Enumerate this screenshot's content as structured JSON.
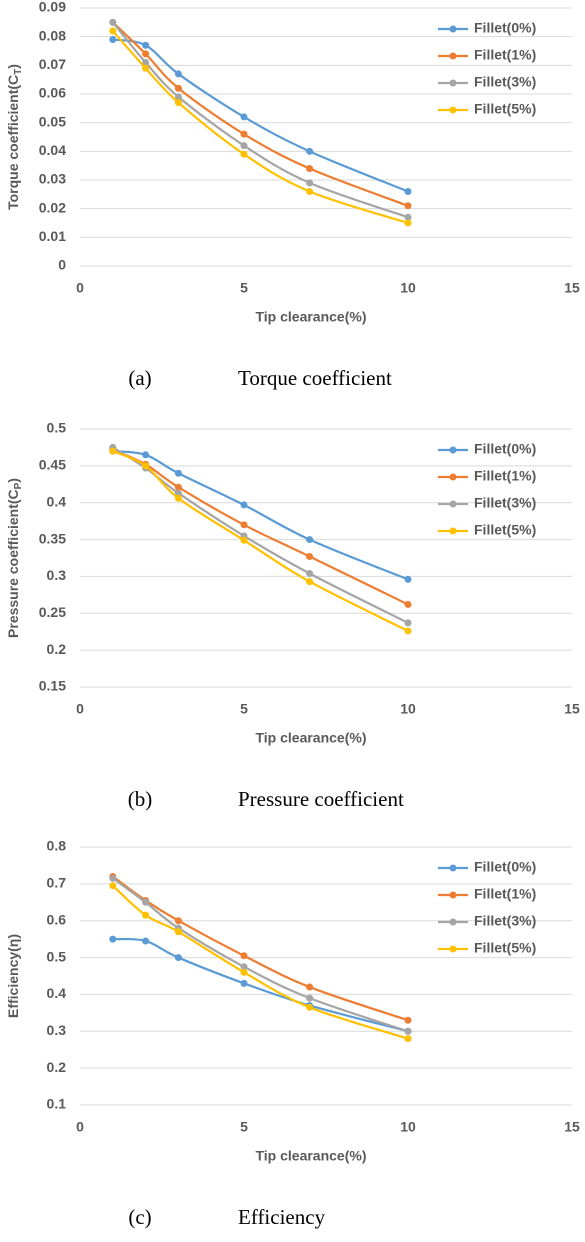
{
  "chart_data": [
    {
      "type": "line",
      "y_label": "Torque coefficient(C",
      "y_label_sub": "T",
      "y_label_end": ")",
      "x_label": "Tip clearance(%)",
      "caption_label": "(a)",
      "caption": "Torque coefficient",
      "x": [
        1,
        2,
        3,
        5,
        7,
        10
      ],
      "xlim": [
        0,
        15
      ],
      "xticks": [
        0,
        5,
        10,
        15
      ],
      "ylim": [
        0,
        0.09
      ],
      "yticks": [
        0,
        0.01,
        0.02,
        0.03,
        0.04,
        0.05,
        0.06,
        0.07,
        0.08,
        0.09
      ],
      "grid": true,
      "series": [
        {
          "name": "Fillet(0%)",
          "color": "#5b9bd5",
          "values": [
            0.079,
            0.077,
            0.067,
            0.052,
            0.04,
            0.026
          ]
        },
        {
          "name": "Fillet(1%)",
          "color": "#ed7d31",
          "values": [
            0.085,
            0.074,
            0.062,
            0.046,
            0.034,
            0.021
          ]
        },
        {
          "name": "Fillet(3%)",
          "color": "#a5a5a5",
          "values": [
            0.085,
            0.071,
            0.059,
            0.042,
            0.029,
            0.017
          ]
        },
        {
          "name": "Fillet(5%)",
          "color": "#ffc000",
          "values": [
            0.082,
            0.069,
            0.057,
            0.039,
            0.026,
            0.015
          ]
        }
      ]
    },
    {
      "type": "line",
      "y_label": "Pressure coefficient(C",
      "y_label_sub": "P",
      "y_label_end": ")",
      "x_label": "Tip clearance(%)",
      "caption_label": "(b)",
      "caption": "Pressure coefficient",
      "x": [
        1,
        2,
        3,
        5,
        7,
        10
      ],
      "xlim": [
        0,
        15
      ],
      "xticks": [
        0,
        5,
        10,
        15
      ],
      "ylim": [
        0.15,
        0.5
      ],
      "yticks": [
        0.15,
        0.2,
        0.25,
        0.3,
        0.35,
        0.4,
        0.45,
        0.5
      ],
      "grid": true,
      "series": [
        {
          "name": "Fillet(0%)",
          "color": "#5b9bd5",
          "values": [
            0.47,
            0.465,
            0.44,
            0.397,
            0.35,
            0.296
          ]
        },
        {
          "name": "Fillet(1%)",
          "color": "#ed7d31",
          "values": [
            0.472,
            0.452,
            0.421,
            0.37,
            0.327,
            0.262
          ]
        },
        {
          "name": "Fillet(3%)",
          "color": "#a5a5a5",
          "values": [
            0.475,
            0.447,
            0.413,
            0.355,
            0.304,
            0.237
          ]
        },
        {
          "name": "Fillet(5%)",
          "color": "#ffc000",
          "values": [
            0.47,
            0.45,
            0.406,
            0.349,
            0.293,
            0.226
          ]
        }
      ]
    },
    {
      "type": "line",
      "y_label": "Efficiency(η)",
      "x_label": "Tip clearance(%)",
      "caption_label": "(c)",
      "caption": "Efficiency",
      "x": [
        1,
        2,
        3,
        5,
        7,
        10
      ],
      "xlim": [
        0,
        15
      ],
      "xticks": [
        0,
        5,
        10,
        15
      ],
      "ylim": [
        0.1,
        0.8
      ],
      "yticks": [
        0.1,
        0.2,
        0.3,
        0.4,
        0.5,
        0.6,
        0.7,
        0.8
      ],
      "grid": true,
      "series": [
        {
          "name": "Fillet(0%)",
          "color": "#5b9bd5",
          "values": [
            0.55,
            0.545,
            0.5,
            0.43,
            0.37,
            0.3
          ]
        },
        {
          "name": "Fillet(1%)",
          "color": "#ed7d31",
          "values": [
            0.72,
            0.655,
            0.6,
            0.505,
            0.42,
            0.33
          ]
        },
        {
          "name": "Fillet(3%)",
          "color": "#a5a5a5",
          "values": [
            0.715,
            0.65,
            0.58,
            0.475,
            0.39,
            0.3
          ]
        },
        {
          "name": "Fillet(5%)",
          "color": "#ffc000",
          "values": [
            0.695,
            0.615,
            0.57,
            0.46,
            0.365,
            0.28
          ]
        }
      ]
    }
  ]
}
